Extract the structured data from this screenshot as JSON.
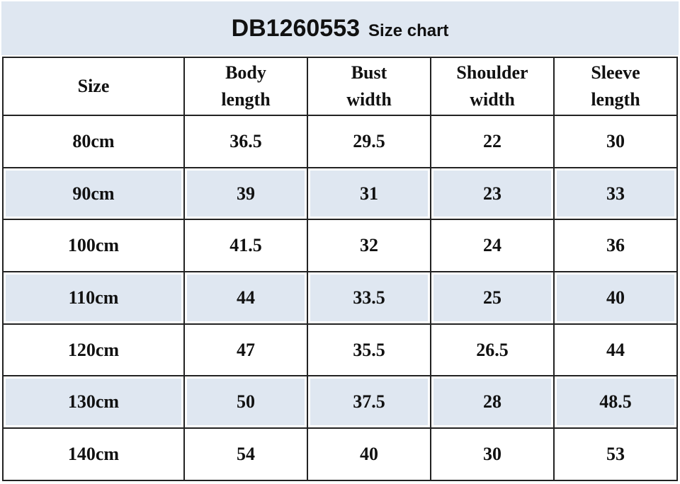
{
  "title": {
    "code": "DB1260553",
    "subtitle": "Size chart"
  },
  "colors": {
    "header_band": "#dfe7f1",
    "alt_row": "#dfe7f1",
    "border": "#222222"
  },
  "columns": [
    [
      "Size"
    ],
    [
      "Body",
      "length"
    ],
    [
      "Bust",
      "width"
    ],
    [
      "Shoulder",
      "width"
    ],
    [
      "Sleeve",
      "length"
    ]
  ],
  "rows": [
    [
      "80cm",
      "36.5",
      "29.5",
      "22",
      "30"
    ],
    [
      "90cm",
      "39",
      "31",
      "23",
      "33"
    ],
    [
      "100cm",
      "41.5",
      "32",
      "24",
      "36"
    ],
    [
      "110cm",
      "44",
      "33.5",
      "25",
      "40"
    ],
    [
      "120cm",
      "47",
      "35.5",
      "26.5",
      "44"
    ],
    [
      "130cm",
      "50",
      "37.5",
      "28",
      "48.5"
    ],
    [
      "140cm",
      "54",
      "40",
      "30",
      "53"
    ]
  ]
}
